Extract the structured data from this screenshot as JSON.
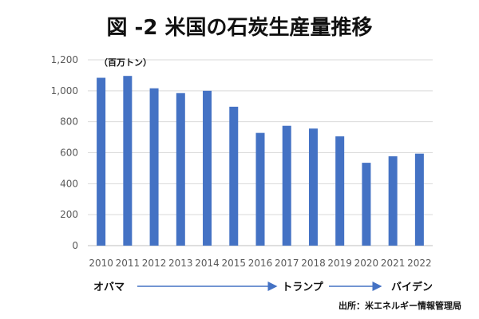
{
  "title": "図 -2 米国の石炭生産量推移",
  "source": "出所：米エネルギー情報管理局",
  "chart_data": {
    "type": "bar",
    "unit_label": "（百万トン）",
    "categories": [
      "2010",
      "2011",
      "2012",
      "2013",
      "2014",
      "2015",
      "2016",
      "2017",
      "2018",
      "2019",
      "2020",
      "2021",
      "2022"
    ],
    "values": [
      1084,
      1096,
      1016,
      985,
      1000,
      897,
      728,
      774,
      756,
      706,
      535,
      577,
      594
    ],
    "ylim": [
      0,
      1200
    ],
    "yticks": [
      0,
      200,
      400,
      600,
      800,
      1000,
      1200
    ],
    "ytick_labels": [
      "0",
      "200",
      "400",
      "600",
      "800",
      "1,000",
      "1,200"
    ],
    "bar_color": "#4472C4",
    "grid": true,
    "grid_color": "#d9d9d9",
    "administrations": [
      {
        "label": "オバマ",
        "from": "2010",
        "to": "2016"
      },
      {
        "label": "トランプ",
        "from": "2017",
        "to": "2020"
      },
      {
        "label": "バイデン",
        "from": "2021",
        "to": "2022"
      }
    ],
    "arrow_color": "#4472C4"
  }
}
